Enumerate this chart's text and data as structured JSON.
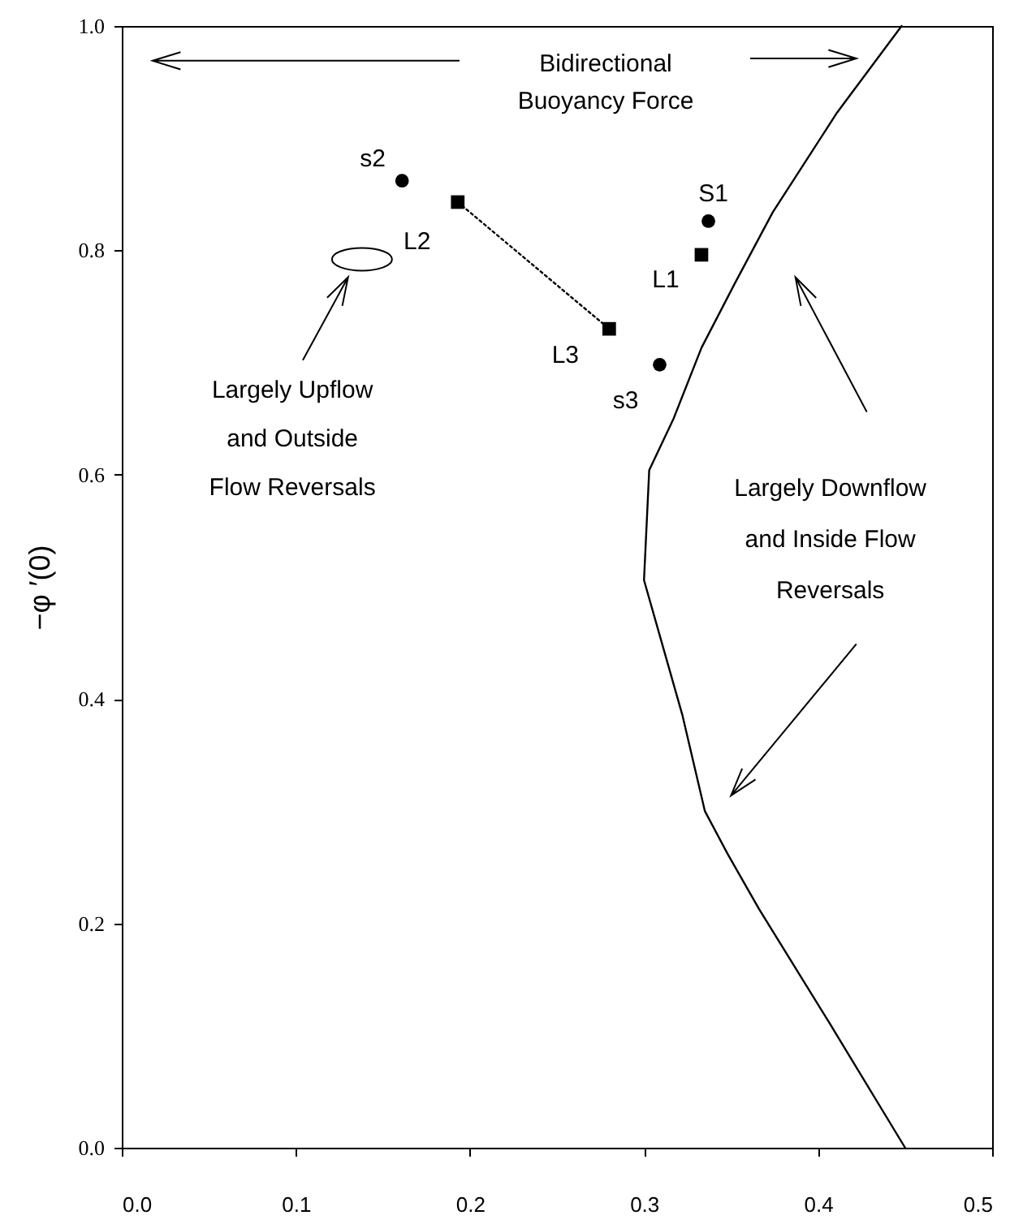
{
  "chart_data": {
    "type": "scatter",
    "ylabel": "−φ ′(0)",
    "xlim": [
      0,
      0.5
    ],
    "ylim": [
      0,
      1
    ],
    "xticks": [
      {
        "value": 0,
        "label": "0.0"
      },
      0.1,
      0.2,
      0.3,
      0.4,
      0.5
    ],
    "yticks": [
      {
        "value": 0,
        "label": "0.0"
      },
      0.2,
      0.4,
      0.6,
      0.8,
      {
        "value": 1,
        "label": "1.0"
      }
    ],
    "series": [
      {
        "type": "scatter",
        "marker": "circle",
        "color": "#000000",
        "x": [
          0.161,
          0.309,
          0.337
        ],
        "values": [
          0.862,
          0.698,
          0.826
        ]
      },
      {
        "type": "scatter",
        "marker": "square",
        "color": "#000000",
        "x": [
          0.193,
          0.28,
          0.333
        ],
        "values": [
          0.843,
          0.73,
          0.796
        ]
      },
      {
        "type": "line",
        "line_style": "dotted",
        "color": "#000000",
        "x": [
          0.193,
          0.28
        ],
        "values": [
          0.843,
          0.73
        ]
      },
      {
        "type": "line",
        "line_style": "solid",
        "color": "#000000",
        "x": [
          0.45,
          0.407,
          0.366,
          0.348,
          0.335,
          0.322,
          0.3,
          0.303,
          0.317,
          0.333,
          0.352,
          0.374,
          0.411,
          0.448
        ],
        "values": [
          0.0,
          0.11,
          0.213,
          0.262,
          0.3,
          0.386,
          0.506,
          0.604,
          0.65,
          0.713,
          0.77,
          0.834,
          0.923,
          1.0
        ]
      }
    ],
    "annotations": [
      "Bidirectional\nBuoyancy Force",
      "Largely Upflow\nand Outside\nFlow Reversals",
      "Largely Downflow\nand Inside Flow\nReversals",
      {
        "text": "s2",
        "x": 0.161,
        "y": 0.862
      },
      {
        "text": "L2",
        "x": 0.193,
        "y": 0.843
      },
      {
        "text": "L3",
        "x": 0.28,
        "y": 0.73
      },
      {
        "text": "s3",
        "x": 0.309,
        "y": 0.698
      },
      {
        "text": "S1",
        "x": 0.337,
        "y": 0.826
      },
      {
        "text": "L1",
        "x": 0.333,
        "y": 0.796
      }
    ]
  }
}
